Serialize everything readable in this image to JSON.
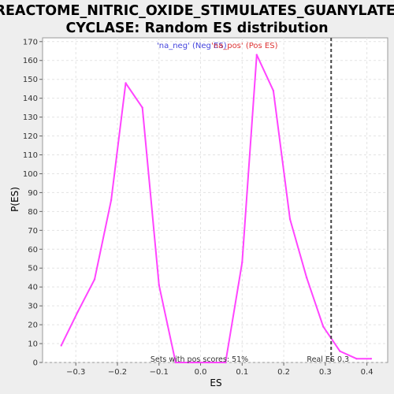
{
  "chart_data": {
    "type": "line",
    "title_line1": "REACTOME_NITRIC_OXIDE_STIMULATES_GUANYLATE_",
    "title_line2": "CYCLASE: Random ES distribution",
    "xlabel": "ES",
    "ylabel": "P(ES)",
    "xlim": [
      -0.38,
      0.45
    ],
    "ylim": [
      0,
      172
    ],
    "x_ticks": [
      -0.3,
      -0.2,
      -0.1,
      0.0,
      0.1,
      0.2,
      0.3,
      0.4
    ],
    "x_tick_labels": [
      "−0.3",
      "−0.2",
      "−0.1",
      "0.0",
      "0.1",
      "0.2",
      "0.3",
      "0.4"
    ],
    "y_ticks": [
      0,
      10,
      20,
      30,
      40,
      50,
      60,
      70,
      80,
      90,
      100,
      110,
      120,
      130,
      140,
      150,
      160,
      170
    ],
    "grid": true,
    "series": [
      {
        "name": "",
        "color": "#ff44ff",
        "x": [
          -0.335,
          -0.295,
          -0.255,
          -0.215,
          -0.18,
          -0.14,
          -0.1,
          -0.06,
          -0.02,
          0.02,
          0.06,
          0.1,
          0.135,
          0.175,
          0.215,
          0.255,
          0.295,
          0.335,
          0.375,
          0.41
        ],
        "y": [
          9,
          27,
          44,
          86,
          148,
          135,
          41,
          0,
          0,
          0,
          0,
          53,
          163,
          144,
          76,
          45,
          19,
          6,
          2,
          2
        ]
      }
    ],
    "legend": [
      {
        "label": "'na_neg' (Neg ES)",
        "color": "#4444dd"
      },
      {
        "label": "'na_pos' (Pos ES)",
        "color": "#dd3333"
      }
    ],
    "legend_position": "top-center",
    "vline": {
      "x": 0.314,
      "label": "Real ES 0.3"
    },
    "annotation": "Sets with pos scores: 51%"
  }
}
